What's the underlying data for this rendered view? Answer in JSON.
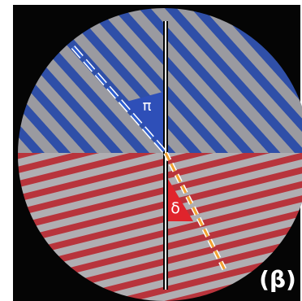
{
  "figure": {
    "panel_label": "(β)",
    "upper_region": {
      "color": "#2f4fa8",
      "angle_label": "π",
      "angle_color": "#2e4fb8"
    },
    "lower_region": {
      "color": "#b8343c",
      "angle_label": "δ",
      "angle_color": "#e0242c"
    },
    "colors": {
      "background": "#050505",
      "stripe_light": "#9a9aa0",
      "vertical_line": "#ffffff",
      "upper_dashed_line": "#2f5fd0",
      "lower_dashed_line": "#f0a030",
      "label_text": "#ffffff"
    }
  }
}
